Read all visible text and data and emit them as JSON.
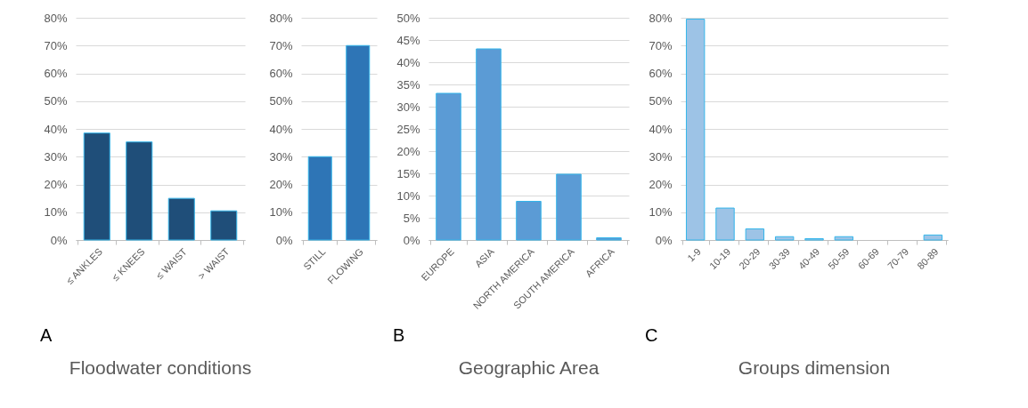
{
  "chart_data": [
    {
      "type": "bar",
      "title": "Floodwater conditions",
      "annotations": [
        "A"
      ],
      "categories": [
        "≤ ANKLES",
        "≤ KNEES",
        "≤ WAIST",
        "> WAIST"
      ],
      "values": [
        38.5,
        35.3,
        15,
        10.5
      ],
      "color": "#1f4e79",
      "ylim": [
        0,
        80
      ],
      "yticks": [
        {
          "value": 0,
          "label": "0%"
        },
        {
          "value": 10,
          "label": "10%"
        },
        {
          "value": 20,
          "label": "20%"
        },
        {
          "value": 30,
          "label": "30%"
        },
        {
          "value": 40,
          "label": "40%"
        },
        {
          "value": 50,
          "label": "50%"
        },
        {
          "value": 60,
          "label": "60%"
        },
        {
          "value": 70,
          "label": "70%"
        },
        {
          "value": 80,
          "label": "80%"
        }
      ],
      "grid": "y"
    },
    {
      "type": "bar",
      "categories": [
        "STILL",
        "FLOWING"
      ],
      "values": [
        30,
        70
      ],
      "color": "#2e75b6",
      "ylim": [
        0,
        80
      ],
      "yticks": [
        {
          "value": 0,
          "label": "0%"
        },
        {
          "value": 10,
          "label": "10%"
        },
        {
          "value": 20,
          "label": "20%"
        },
        {
          "value": 30,
          "label": "30%"
        },
        {
          "value": 40,
          "label": "40%"
        },
        {
          "value": 50,
          "label": "50%"
        },
        {
          "value": 60,
          "label": "60%"
        },
        {
          "value": 70,
          "label": "70%"
        },
        {
          "value": 80,
          "label": "80%"
        }
      ],
      "grid": "y"
    },
    {
      "type": "bar",
      "title": "Geographic Area",
      "annotations": [
        "B"
      ],
      "categories": [
        "EUROPE",
        "ASIA",
        "NORTH AMERICA",
        "SOUTH AMERICA",
        "AFRICA"
      ],
      "values": [
        33,
        43,
        8.7,
        14.8,
        0.5
      ],
      "color": "#5b9bd5",
      "ylim": [
        0,
        50
      ],
      "yticks": [
        {
          "value": 0,
          "label": "0%"
        },
        {
          "value": 5,
          "label": "5%"
        },
        {
          "value": 10,
          "label": "10%"
        },
        {
          "value": 15,
          "label": "15%"
        },
        {
          "value": 20,
          "label": "20%"
        },
        {
          "value": 25,
          "label": "25%"
        },
        {
          "value": 30,
          "label": "30%"
        },
        {
          "value": 35,
          "label": "35%"
        },
        {
          "value": 40,
          "label": "40%"
        },
        {
          "value": 45,
          "label": "45%"
        },
        {
          "value": 50,
          "label": "50%"
        }
      ],
      "grid": "y"
    },
    {
      "type": "bar",
      "title": "Groups dimension",
      "annotations": [
        "C"
      ],
      "categories": [
        "1-9",
        "10-19",
        "20-29",
        "30-39",
        "40-49",
        "50-59",
        "60-69",
        "70-79",
        "80-89"
      ],
      "values": [
        79.5,
        11.5,
        4,
        1.2,
        0.5,
        1.2,
        0,
        0,
        1.8
      ],
      "color": "#9dc3e6",
      "ylim": [
        0,
        80
      ],
      "yticks": [
        {
          "value": 0,
          "label": "0%"
        },
        {
          "value": 10,
          "label": "10%"
        },
        {
          "value": 20,
          "label": "20%"
        },
        {
          "value": 30,
          "label": "30%"
        },
        {
          "value": 40,
          "label": "40%"
        },
        {
          "value": 50,
          "label": "50%"
        },
        {
          "value": 60,
          "label": "60%"
        },
        {
          "value": 70,
          "label": "70%"
        },
        {
          "value": 80,
          "label": "80%"
        }
      ],
      "grid": "y"
    }
  ]
}
